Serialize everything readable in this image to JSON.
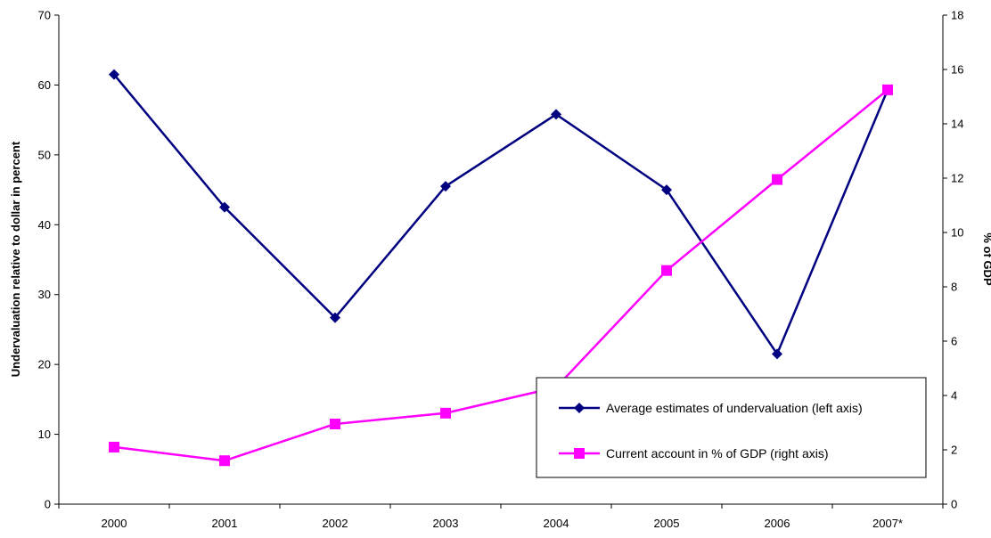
{
  "chart_data": {
    "type": "line",
    "categories": [
      "2000",
      "2001",
      "2002",
      "2003",
      "2004",
      "2005",
      "2006",
      "2007*"
    ],
    "ylabel_left": "Undervaluation relative to dollar in percent",
    "ylabel_right": "% of GDP",
    "ylim_left": [
      0,
      70
    ],
    "yticks_left": [
      0,
      10,
      20,
      30,
      40,
      50,
      60,
      70
    ],
    "ylim_right": [
      0,
      18
    ],
    "yticks_right": [
      0,
      2,
      4,
      6,
      8,
      10,
      12,
      14,
      16,
      18
    ],
    "grid": false,
    "legend_position": "bottom-right",
    "series": [
      {
        "name": "Average estimates of undervaluation (left axis)",
        "axis": "left",
        "marker": "diamond",
        "color": "#000080",
        "values": [
          61.5,
          42.5,
          26.7,
          45.5,
          55.8,
          45.0,
          21.5,
          59.3
        ]
      },
      {
        "name": "Current account in % of GDP (right axis)",
        "axis": "right",
        "marker": "square",
        "color": "#FF00FF",
        "values": [
          2.1,
          1.6,
          2.95,
          3.35,
          4.3,
          8.6,
          11.95,
          15.25
        ]
      }
    ]
  }
}
